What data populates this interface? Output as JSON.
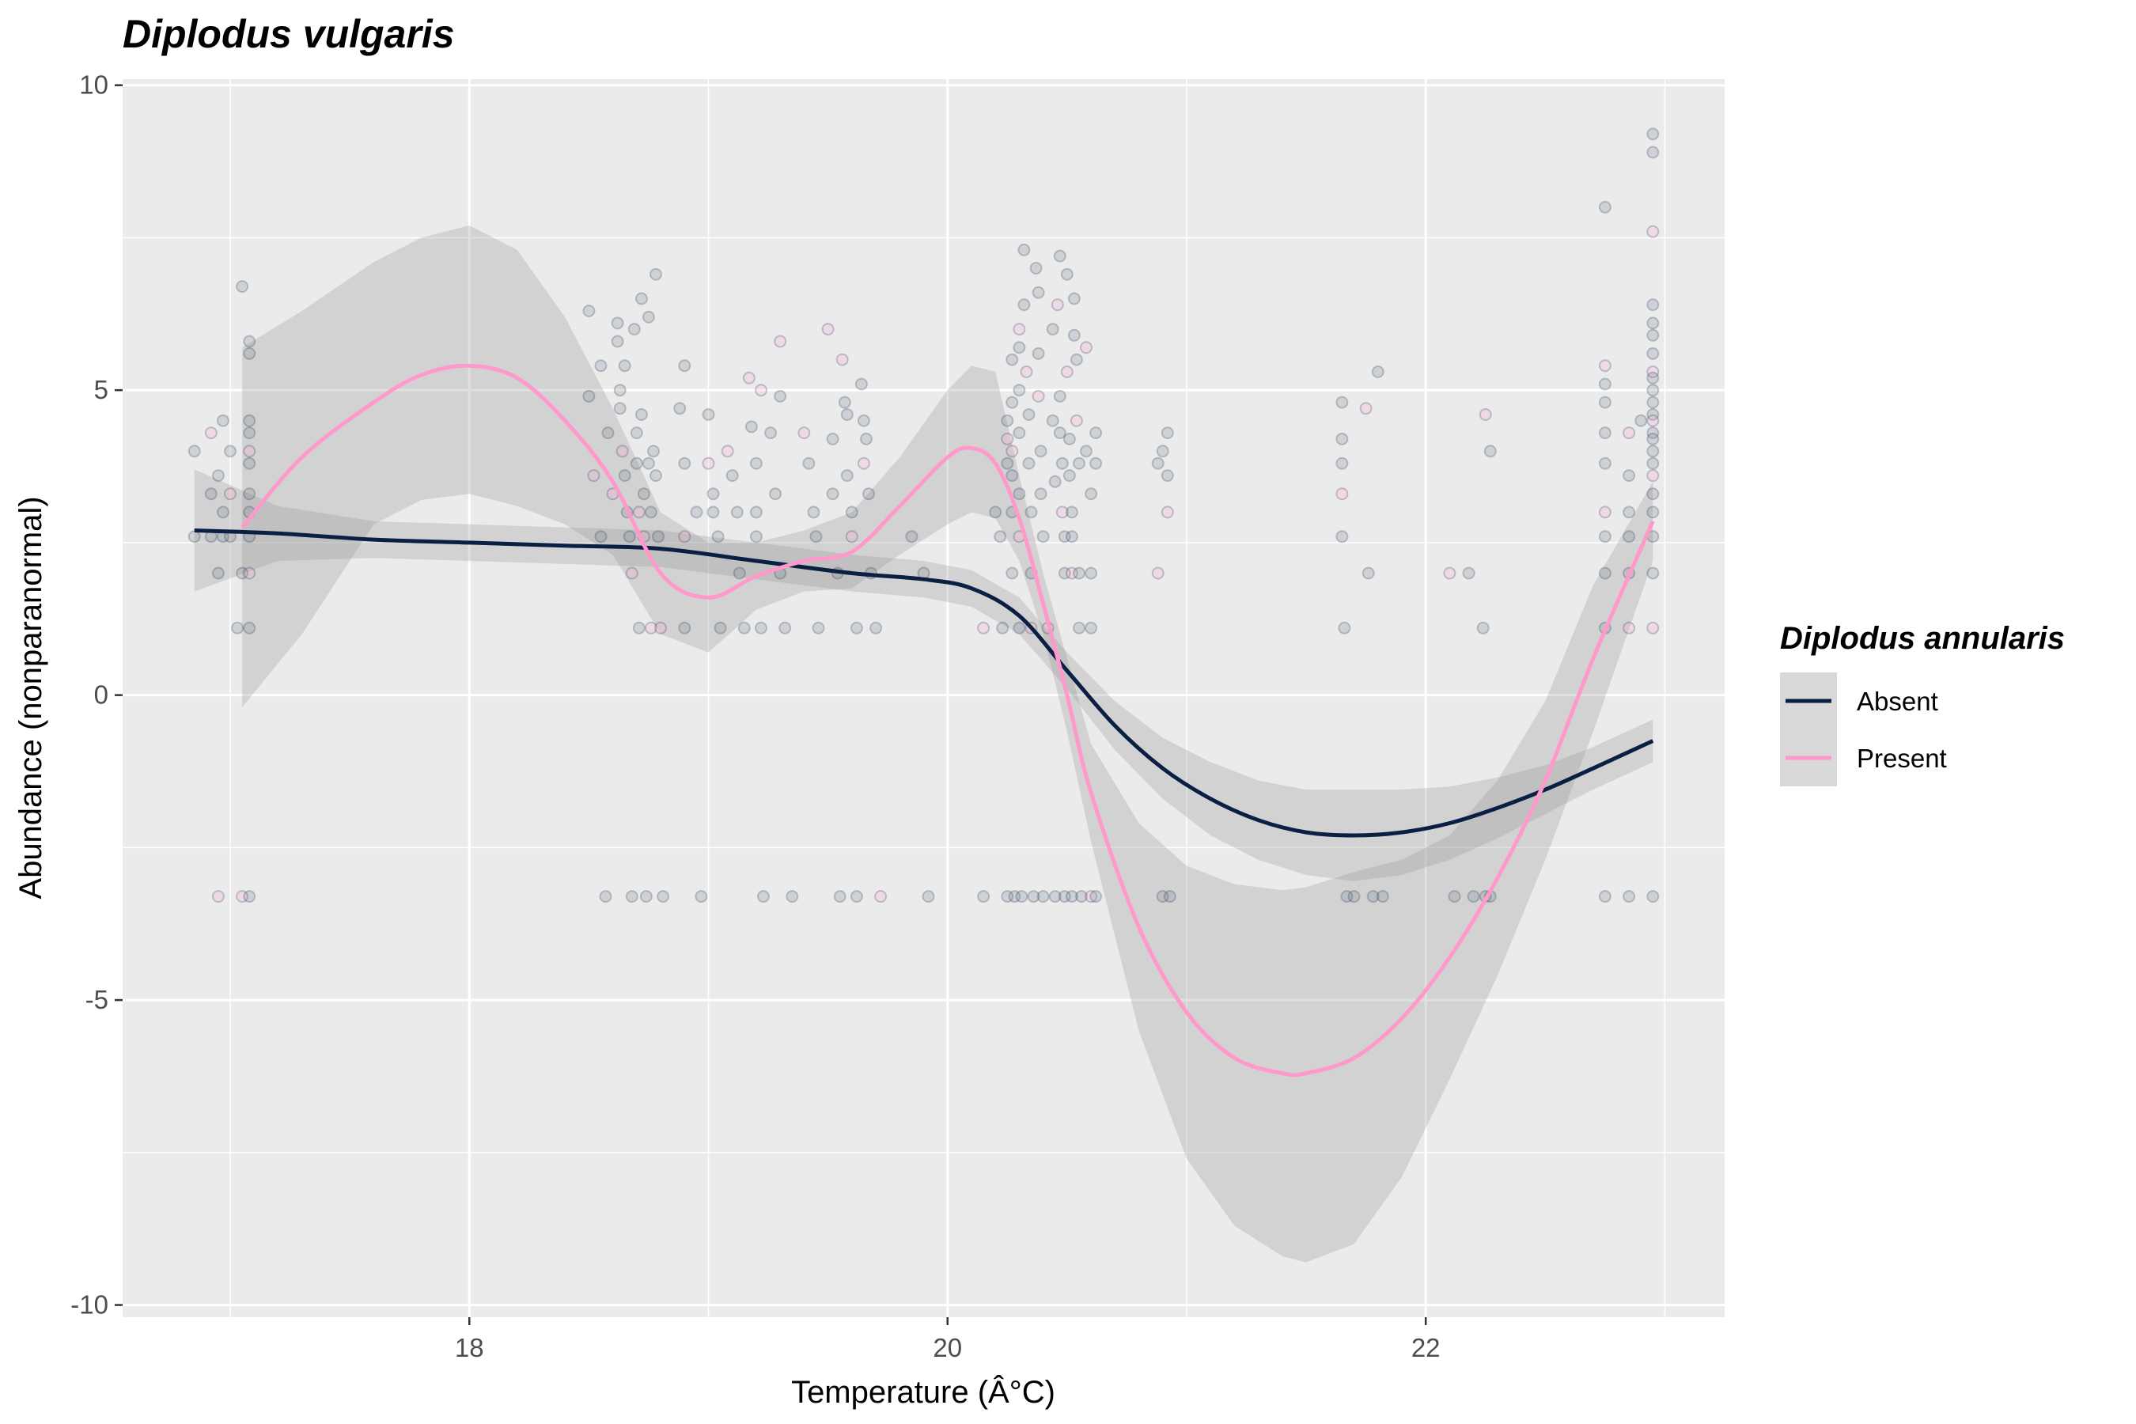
{
  "chart_data": {
    "type": "scatter",
    "title": "Diplodus vulgaris",
    "xlabel": "Temperature (Â°C)",
    "ylabel": "Abundance (nonparanormal)",
    "xlim": [
      16.55,
      23.25
    ],
    "ylim": [
      -10.2,
      10.1
    ],
    "x_ticks": [
      18,
      20,
      22
    ],
    "x_tick_labels": [
      "18",
      "20",
      "22"
    ],
    "y_ticks": [
      -10,
      -5,
      0,
      5,
      10
    ],
    "y_tick_labels": [
      "-10",
      "-5",
      "0",
      "5",
      "10"
    ],
    "grid": true,
    "legend": {
      "title": "Diplodus annularis",
      "position": "right"
    },
    "series": [
      {
        "name": "Absent",
        "color": "#0b1f45",
        "smooth": {
          "x": [
            16.85,
            17.2,
            17.6,
            18.0,
            18.4,
            18.8,
            19.2,
            19.6,
            19.9,
            20.1,
            20.3,
            20.5,
            20.7,
            20.9,
            21.1,
            21.3,
            21.5,
            21.7,
            21.9,
            22.1,
            22.3,
            22.5,
            22.7,
            22.95
          ],
          "y": [
            2.7,
            2.65,
            2.55,
            2.5,
            2.45,
            2.4,
            2.2,
            2.0,
            1.9,
            1.75,
            1.3,
            0.4,
            -0.5,
            -1.2,
            -1.7,
            -2.05,
            -2.25,
            -2.3,
            -2.25,
            -2.1,
            -1.85,
            -1.55,
            -1.2,
            -0.75
          ],
          "ci_lower": [
            1.7,
            2.2,
            2.25,
            2.2,
            2.15,
            2.1,
            1.9,
            1.7,
            1.6,
            1.45,
            1.0,
            0.1,
            -0.9,
            -1.7,
            -2.3,
            -2.7,
            -2.95,
            -3.05,
            -2.95,
            -2.7,
            -2.35,
            -1.95,
            -1.55,
            -1.1
          ],
          "ci_upper": [
            3.7,
            3.1,
            2.85,
            2.8,
            2.75,
            2.7,
            2.5,
            2.3,
            2.2,
            2.05,
            1.6,
            0.7,
            -0.1,
            -0.7,
            -1.1,
            -1.4,
            -1.55,
            -1.55,
            -1.55,
            -1.5,
            -1.35,
            -1.15,
            -0.85,
            -0.4
          ]
        }
      },
      {
        "name": "Present",
        "color": "#ff99cc",
        "smooth": {
          "x": [
            17.05,
            17.3,
            17.6,
            17.8,
            18.0,
            18.2,
            18.4,
            18.6,
            18.8,
            19.0,
            19.2,
            19.4,
            19.6,
            19.8,
            20.0,
            20.1,
            20.2,
            20.3,
            20.4,
            20.5,
            20.6,
            20.8,
            21.0,
            21.2,
            21.4,
            21.5,
            21.7,
            21.9,
            22.1,
            22.3,
            22.5,
            22.7,
            22.95
          ],
          "y": [
            2.75,
            3.9,
            4.8,
            5.25,
            5.4,
            5.2,
            4.5,
            3.5,
            2.0,
            1.6,
            1.95,
            2.2,
            2.35,
            3.1,
            3.9,
            4.05,
            3.8,
            2.9,
            1.5,
            0.0,
            -1.6,
            -3.8,
            -5.2,
            -5.95,
            -6.2,
            -6.2,
            -5.95,
            -5.3,
            -4.3,
            -3.0,
            -1.4,
            0.6,
            2.85
          ],
          "ci_lower": [
            -0.2,
            1.0,
            2.8,
            3.2,
            3.3,
            3.1,
            2.8,
            2.3,
            1.0,
            0.7,
            1.4,
            1.7,
            1.75,
            2.3,
            2.8,
            3.0,
            2.9,
            2.2,
            1.0,
            -0.6,
            -2.4,
            -5.5,
            -7.6,
            -8.7,
            -9.2,
            -9.3,
            -9.0,
            -7.9,
            -6.3,
            -4.6,
            -2.7,
            -0.6,
            2.2
          ],
          "ci_upper": [
            5.7,
            6.3,
            7.1,
            7.5,
            7.7,
            7.3,
            6.2,
            4.7,
            3.0,
            2.5,
            2.5,
            2.7,
            3.0,
            3.9,
            5.0,
            5.4,
            5.3,
            3.6,
            2.0,
            0.6,
            -0.8,
            -2.1,
            -2.8,
            -3.1,
            -3.2,
            -3.15,
            -2.9,
            -2.7,
            -2.3,
            -1.4,
            -0.1,
            1.8,
            3.5
          ]
        }
      }
    ],
    "points": [
      [
        16.85,
        4.0
      ],
      [
        16.85,
        2.6
      ],
      [
        16.92,
        4.3
      ],
      [
        16.92,
        3.3
      ],
      [
        16.92,
        2.6
      ],
      [
        16.95,
        3.6
      ],
      [
        16.95,
        2.0
      ],
      [
        16.95,
        -3.3
      ],
      [
        16.97,
        4.5
      ],
      [
        16.97,
        3.0
      ],
      [
        16.97,
        2.6
      ],
      [
        17.0,
        4.0
      ],
      [
        17.0,
        3.3
      ],
      [
        17.0,
        2.6
      ],
      [
        17.03,
        1.1
      ],
      [
        17.05,
        6.7
      ],
      [
        17.05,
        2.0
      ],
      [
        17.05,
        -3.3
      ],
      [
        17.08,
        5.8
      ],
      [
        17.08,
        5.6
      ],
      [
        17.08,
        4.5
      ],
      [
        17.08,
        4.3
      ],
      [
        17.08,
        4.0
      ],
      [
        17.08,
        3.8
      ],
      [
        17.08,
        3.3
      ],
      [
        17.08,
        3.0
      ],
      [
        17.08,
        2.6
      ],
      [
        17.08,
        2.0
      ],
      [
        17.08,
        1.1
      ],
      [
        17.08,
        -3.3
      ],
      [
        18.5,
        6.3
      ],
      [
        18.5,
        4.9
      ],
      [
        18.52,
        3.6
      ],
      [
        18.55,
        5.4
      ],
      [
        18.55,
        2.6
      ],
      [
        18.57,
        -3.3
      ],
      [
        18.58,
        4.3
      ],
      [
        18.6,
        3.3
      ],
      [
        18.62,
        5.8
      ],
      [
        18.62,
        6.1
      ],
      [
        18.63,
        5.0
      ],
      [
        18.63,
        4.7
      ],
      [
        18.64,
        4.0
      ],
      [
        18.65,
        5.4
      ],
      [
        18.65,
        3.6
      ],
      [
        18.66,
        3.0
      ],
      [
        18.67,
        2.6
      ],
      [
        18.68,
        2.0
      ],
      [
        18.68,
        -3.3
      ],
      [
        18.69,
        6.0
      ],
      [
        18.7,
        4.3
      ],
      [
        18.7,
        3.8
      ],
      [
        18.71,
        3.0
      ],
      [
        18.71,
        1.1
      ],
      [
        18.72,
        6.5
      ],
      [
        18.72,
        4.6
      ],
      [
        18.73,
        3.3
      ],
      [
        18.73,
        2.6
      ],
      [
        18.74,
        -3.3
      ],
      [
        18.75,
        6.2
      ],
      [
        18.75,
        3.8
      ],
      [
        18.76,
        3.0
      ],
      [
        18.76,
        1.1
      ],
      [
        18.77,
        4.0
      ],
      [
        18.78,
        6.9
      ],
      [
        18.78,
        3.6
      ],
      [
        18.79,
        2.6
      ],
      [
        18.8,
        1.1
      ],
      [
        18.81,
        -3.3
      ],
      [
        18.88,
        4.7
      ],
      [
        18.9,
        5.4
      ],
      [
        18.9,
        3.8
      ],
      [
        18.9,
        2.6
      ],
      [
        18.9,
        1.1
      ],
      [
        18.95,
        3.0
      ],
      [
        18.97,
        -3.3
      ],
      [
        19.0,
        4.6
      ],
      [
        19.0,
        3.8
      ],
      [
        19.02,
        3.3
      ],
      [
        19.02,
        3.0
      ],
      [
        19.04,
        2.6
      ],
      [
        19.05,
        1.1
      ],
      [
        19.08,
        4.0
      ],
      [
        19.1,
        3.6
      ],
      [
        19.12,
        3.0
      ],
      [
        19.13,
        2.0
      ],
      [
        19.15,
        1.1
      ],
      [
        19.17,
        5.2
      ],
      [
        19.18,
        4.4
      ],
      [
        19.2,
        3.8
      ],
      [
        19.2,
        3.0
      ],
      [
        19.2,
        2.6
      ],
      [
        19.22,
        5.0
      ],
      [
        19.22,
        1.1
      ],
      [
        19.23,
        -3.3
      ],
      [
        19.26,
        4.3
      ],
      [
        19.28,
        3.3
      ],
      [
        19.3,
        5.8
      ],
      [
        19.3,
        4.9
      ],
      [
        19.3,
        2.0
      ],
      [
        19.32,
        1.1
      ],
      [
        19.35,
        -3.3
      ],
      [
        19.4,
        4.3
      ],
      [
        19.42,
        3.8
      ],
      [
        19.44,
        3.0
      ],
      [
        19.45,
        2.6
      ],
      [
        19.46,
        1.1
      ],
      [
        19.5,
        6.0
      ],
      [
        19.52,
        4.2
      ],
      [
        19.52,
        3.3
      ],
      [
        19.54,
        2.0
      ],
      [
        19.55,
        -3.3
      ],
      [
        19.56,
        5.5
      ],
      [
        19.57,
        4.8
      ],
      [
        19.58,
        4.6
      ],
      [
        19.58,
        3.6
      ],
      [
        19.6,
        3.0
      ],
      [
        19.6,
        2.6
      ],
      [
        19.62,
        1.1
      ],
      [
        19.62,
        -3.3
      ],
      [
        19.64,
        5.1
      ],
      [
        19.65,
        4.5
      ],
      [
        19.65,
        3.8
      ],
      [
        19.66,
        4.2
      ],
      [
        19.67,
        3.3
      ],
      [
        19.68,
        2.0
      ],
      [
        19.7,
        1.1
      ],
      [
        19.72,
        -3.3
      ],
      [
        19.85,
        2.6
      ],
      [
        19.9,
        2.0
      ],
      [
        19.92,
        -3.3
      ],
      [
        20.15,
        -3.3
      ],
      [
        20.15,
        1.1
      ],
      [
        20.2,
        3.0
      ],
      [
        20.22,
        2.6
      ],
      [
        20.23,
        1.1
      ],
      [
        20.25,
        4.5
      ],
      [
        20.25,
        4.2
      ],
      [
        20.25,
        3.8
      ],
      [
        20.25,
        -3.3
      ],
      [
        20.27,
        5.5
      ],
      [
        20.27,
        4.8
      ],
      [
        20.27,
        4.0
      ],
      [
        20.27,
        3.6
      ],
      [
        20.27,
        3.0
      ],
      [
        20.27,
        2.0
      ],
      [
        20.28,
        -3.3
      ],
      [
        20.3,
        6.0
      ],
      [
        20.3,
        5.7
      ],
      [
        20.3,
        5.0
      ],
      [
        20.3,
        4.3
      ],
      [
        20.3,
        3.3
      ],
      [
        20.3,
        2.6
      ],
      [
        20.3,
        1.1
      ],
      [
        20.31,
        -3.3
      ],
      [
        20.32,
        7.3
      ],
      [
        20.32,
        6.4
      ],
      [
        20.33,
        5.3
      ],
      [
        20.34,
        4.6
      ],
      [
        20.34,
        3.8
      ],
      [
        20.35,
        3.0
      ],
      [
        20.35,
        2.0
      ],
      [
        20.35,
        1.1
      ],
      [
        20.36,
        -3.3
      ],
      [
        20.37,
        7.0
      ],
      [
        20.38,
        6.6
      ],
      [
        20.38,
        5.6
      ],
      [
        20.38,
        4.9
      ],
      [
        20.39,
        4.0
      ],
      [
        20.39,
        3.3
      ],
      [
        20.4,
        2.6
      ],
      [
        20.4,
        -3.3
      ],
      [
        20.42,
        1.1
      ],
      [
        20.44,
        6.0
      ],
      [
        20.44,
        4.5
      ],
      [
        20.45,
        3.5
      ],
      [
        20.45,
        -3.3
      ],
      [
        20.46,
        6.4
      ],
      [
        20.47,
        7.2
      ],
      [
        20.47,
        4.9
      ],
      [
        20.47,
        4.3
      ],
      [
        20.48,
        3.8
      ],
      [
        20.48,
        3.0
      ],
      [
        20.49,
        2.6
      ],
      [
        20.49,
        2.0
      ],
      [
        20.49,
        -3.3
      ],
      [
        20.5,
        6.9
      ],
      [
        20.5,
        5.3
      ],
      [
        20.51,
        4.2
      ],
      [
        20.51,
        3.6
      ],
      [
        20.52,
        3.0
      ],
      [
        20.52,
        2.6
      ],
      [
        20.52,
        2.0
      ],
      [
        20.52,
        -3.3
      ],
      [
        20.53,
        6.5
      ],
      [
        20.53,
        5.9
      ],
      [
        20.54,
        5.5
      ],
      [
        20.54,
        4.5
      ],
      [
        20.55,
        3.8
      ],
      [
        20.55,
        2.0
      ],
      [
        20.55,
        1.1
      ],
      [
        20.56,
        -3.3
      ],
      [
        20.58,
        5.7
      ],
      [
        20.58,
        4.0
      ],
      [
        20.6,
        3.3
      ],
      [
        20.6,
        2.0
      ],
      [
        20.6,
        1.1
      ],
      [
        20.6,
        -3.3
      ],
      [
        20.62,
        4.3
      ],
      [
        20.62,
        3.8
      ],
      [
        20.62,
        -3.3
      ],
      [
        20.88,
        3.8
      ],
      [
        20.88,
        2.0
      ],
      [
        20.9,
        4.0
      ],
      [
        20.9,
        -3.3
      ],
      [
        20.92,
        4.3
      ],
      [
        20.92,
        3.6
      ],
      [
        20.92,
        3.0
      ],
      [
        20.93,
        -3.3
      ],
      [
        21.65,
        4.8
      ],
      [
        21.65,
        4.2
      ],
      [
        21.65,
        3.8
      ],
      [
        21.65,
        3.3
      ],
      [
        21.65,
        2.6
      ],
      [
        21.66,
        1.1
      ],
      [
        21.67,
        -3.3
      ],
      [
        21.7,
        -3.3
      ],
      [
        21.75,
        4.7
      ],
      [
        21.76,
        2.0
      ],
      [
        21.78,
        -3.3
      ],
      [
        21.8,
        5.3
      ],
      [
        21.82,
        -3.3
      ],
      [
        22.1,
        2.0
      ],
      [
        22.12,
        -3.3
      ],
      [
        22.18,
        2.0
      ],
      [
        22.2,
        -3.3
      ],
      [
        22.24,
        1.1
      ],
      [
        22.25,
        4.6
      ],
      [
        22.25,
        -3.3
      ],
      [
        22.27,
        4.0
      ],
      [
        22.27,
        -3.3
      ],
      [
        22.75,
        8.0
      ],
      [
        22.75,
        5.4
      ],
      [
        22.75,
        5.1
      ],
      [
        22.75,
        4.8
      ],
      [
        22.75,
        4.3
      ],
      [
        22.75,
        3.8
      ],
      [
        22.75,
        3.0
      ],
      [
        22.75,
        2.6
      ],
      [
        22.75,
        2.0
      ],
      [
        22.75,
        1.1
      ],
      [
        22.75,
        -3.3
      ],
      [
        22.85,
        4.3
      ],
      [
        22.85,
        3.6
      ],
      [
        22.85,
        3.0
      ],
      [
        22.85,
        2.6
      ],
      [
        22.85,
        2.0
      ],
      [
        22.85,
        1.1
      ],
      [
        22.85,
        -3.3
      ],
      [
        22.9,
        4.5
      ],
      [
        22.95,
        9.2
      ],
      [
        22.95,
        8.9
      ],
      [
        22.95,
        7.6
      ],
      [
        22.95,
        6.4
      ],
      [
        22.95,
        6.1
      ],
      [
        22.95,
        5.9
      ],
      [
        22.95,
        5.6
      ],
      [
        22.95,
        5.3
      ],
      [
        22.95,
        5.2
      ],
      [
        22.95,
        5.0
      ],
      [
        22.95,
        4.8
      ],
      [
        22.95,
        4.6
      ],
      [
        22.95,
        4.5
      ],
      [
        22.95,
        4.3
      ],
      [
        22.95,
        4.2
      ],
      [
        22.95,
        4.0
      ],
      [
        22.95,
        3.8
      ],
      [
        22.95,
        3.6
      ],
      [
        22.95,
        3.3
      ],
      [
        22.95,
        3.0
      ],
      [
        22.95,
        2.6
      ],
      [
        22.95,
        2.0
      ],
      [
        22.95,
        1.1
      ],
      [
        22.95,
        -3.3
      ]
    ]
  }
}
